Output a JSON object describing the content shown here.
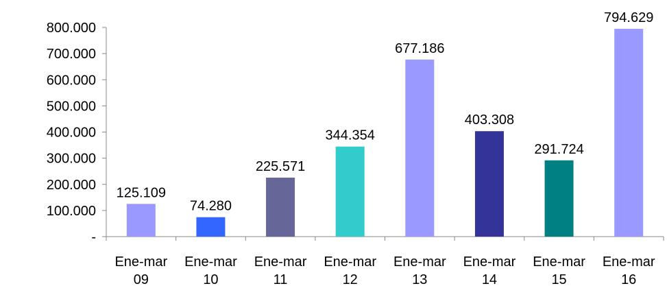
{
  "chart_data": {
    "type": "bar",
    "categories": [
      "Ene-mar 09",
      "Ene-mar 10",
      "Ene-mar 11",
      "Ene-mar 12",
      "Ene-mar 13",
      "Ene-mar 14",
      "Ene-mar 15",
      "Ene-mar 16"
    ],
    "values": [
      125109,
      74280,
      225571,
      344354,
      677186,
      403308,
      291724,
      794629
    ],
    "value_labels": [
      "125.109",
      "74.280",
      "225.571",
      "344.354",
      "677.186",
      "403.308",
      "291.724",
      "794.629"
    ],
    "colors": [
      "#9999ff",
      "#3366ff",
      "#666699",
      "#33cccc",
      "#9999ff",
      "#333399",
      "#008080",
      "#9999ff"
    ],
    "ylim": [
      0,
      800000
    ],
    "yticks": [
      {
        "value": 0,
        "label": "-"
      },
      {
        "value": 100000,
        "label": "100.000"
      },
      {
        "value": 200000,
        "label": "200.000"
      },
      {
        "value": 300000,
        "label": "300.000"
      },
      {
        "value": 400000,
        "label": "400.000"
      },
      {
        "value": 500000,
        "label": "500.000"
      },
      {
        "value": 600000,
        "label": "600.000"
      },
      {
        "value": 700000,
        "label": "700.000"
      },
      {
        "value": 800000,
        "label": "800.000"
      }
    ],
    "grid": false
  }
}
